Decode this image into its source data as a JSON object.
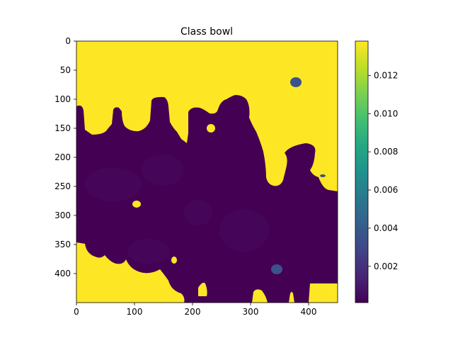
{
  "chart_data": {
    "type": "heatmap",
    "title": "Class bowl",
    "xlabel": "",
    "ylabel": "",
    "colormap": "viridis",
    "x_range": [
      0,
      450
    ],
    "y_range": [
      450,
      0
    ],
    "y_inverted": true,
    "x_ticks": [
      "0",
      "100",
      "200",
      "300",
      "400"
    ],
    "y_ticks": [
      "0",
      "50",
      "100",
      "150",
      "200",
      "250",
      "300",
      "350",
      "400"
    ],
    "colorbar": {
      "range": [
        0.0001,
        0.0138
      ],
      "ticks": [
        "0.002",
        "0.004",
        "0.006",
        "0.008",
        "0.010",
        "0.012"
      ]
    },
    "colors": {
      "high": "#fde725",
      "low": "#440154",
      "low_shade": "#46085c",
      "mid": "#3b528b"
    },
    "regions": [
      {
        "name": "high-region-background",
        "level": 0.0138
      },
      {
        "name": "low-region-main",
        "level": 0.0002
      },
      {
        "name": "high-region-bottom-left",
        "level": 0.0138
      },
      {
        "name": "high-region-bottom-right",
        "level": 0.0138
      },
      {
        "name": "spot-top-right",
        "level": 0.0025
      },
      {
        "name": "spot-lower",
        "level": 0.0025
      }
    ]
  }
}
